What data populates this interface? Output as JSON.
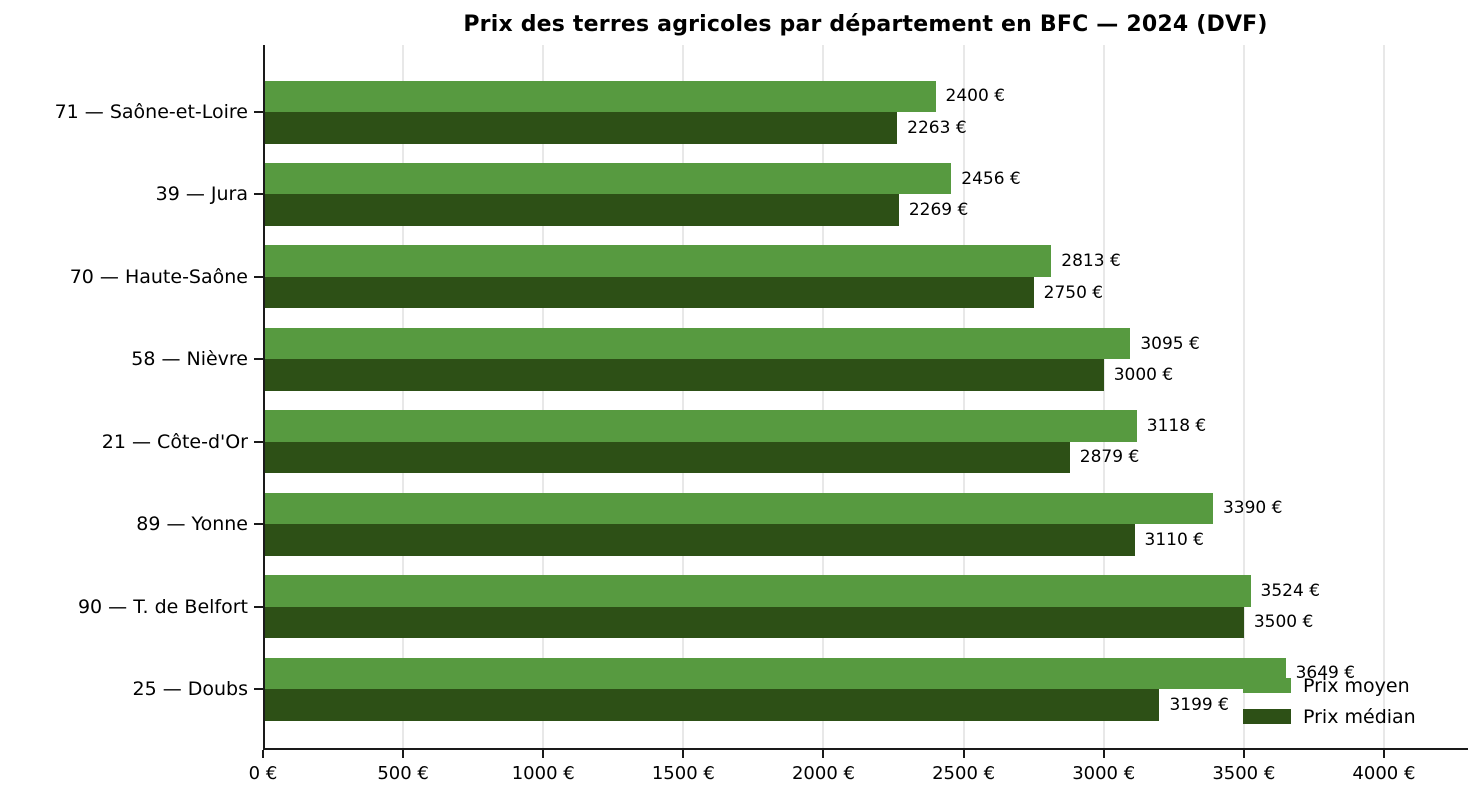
{
  "chart_data": {
    "type": "bar",
    "orientation": "horizontal",
    "title": "Prix des terres agricoles par département en BFC — 2024 (DVF)",
    "categories": [
      "71 — Saône-et-Loire",
      "39 — Jura",
      "70 — Haute-Saône",
      "58 — Nièvre",
      "21 — Côte-d'Or",
      "89 — Yonne",
      "90 — T. de Belfort",
      "25 — Doubs"
    ],
    "series": [
      {
        "name": "Prix moyen",
        "color": "#579a40",
        "values": [
          2400,
          2456,
          2813,
          3095,
          3118,
          3390,
          3524,
          3649
        ]
      },
      {
        "name": "Prix médian",
        "color": "#2d5016",
        "values": [
          2263,
          2269,
          2750,
          3000,
          2879,
          3110,
          3500,
          3199
        ]
      }
    ],
    "value_labels": [
      [
        "2400 €",
        "2456 €",
        "2813 €",
        "3095 €",
        "3118 €",
        "3390 €",
        "3524 €",
        "3649 €"
      ],
      [
        "2263 €",
        "2269 €",
        "2750 €",
        "3000 €",
        "2879 €",
        "3110 €",
        "3500 €",
        "3199 €"
      ]
    ],
    "value_suffix": " €",
    "xlabel": "",
    "ylabel": "",
    "xlim": [
      0,
      4300
    ],
    "xticks": [
      0,
      500,
      1000,
      1500,
      2000,
      2500,
      3000,
      3500,
      4000
    ],
    "xtick_labels": [
      "0 €",
      "500 €",
      "1000 €",
      "1500 €",
      "2000 €",
      "2500 €",
      "3000 €",
      "3500 €",
      "4000 €"
    ],
    "grid": "vertical",
    "grid_color": "#e8e8e8",
    "axis_color": "#1a1a1a",
    "legend_position": "lower right",
    "legend_frame": false
  }
}
